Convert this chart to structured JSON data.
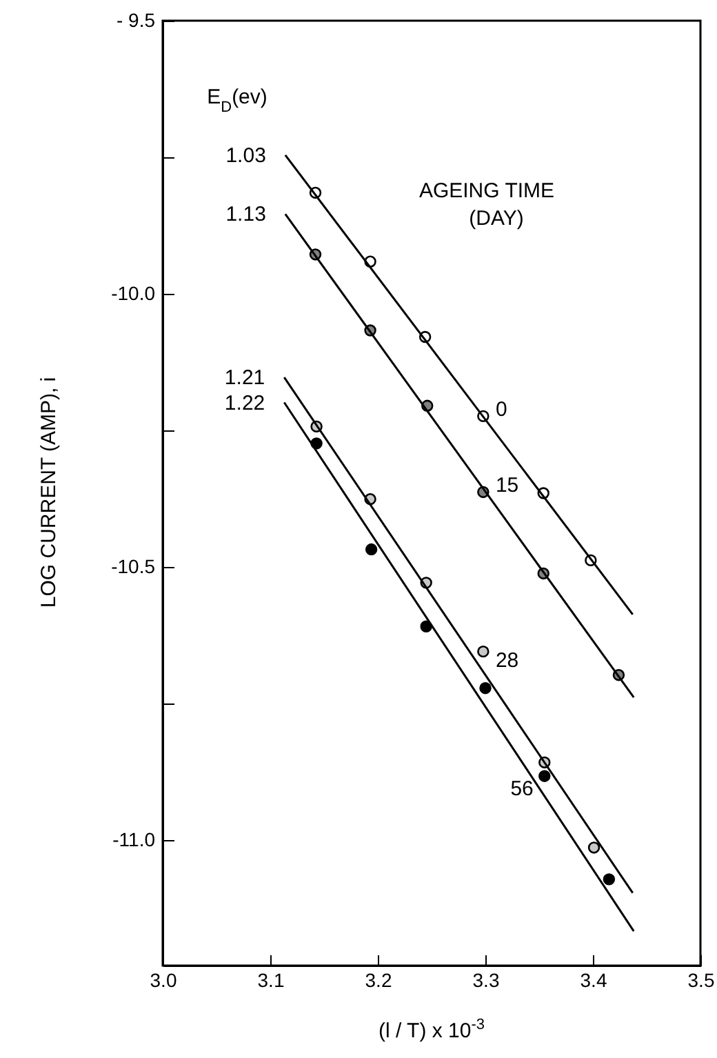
{
  "chart_data": {
    "type": "scatter",
    "xlabel": "(l / T) x 10$^{-3}$",
    "ylabel": "LOG CURRENT (AMP), i",
    "xlim": [
      3.0,
      3.5
    ],
    "xticks": [
      {
        "value": 3.0,
        "label": "3.0"
      },
      3.1,
      3.2,
      3.3,
      3.4,
      3.5
    ],
    "ylim": [
      -11.23,
      -9.5
    ],
    "yticks": [
      {
        "value": -9.5,
        "label": "- 9.5"
      },
      {
        "value": -9.75,
        "label": null
      },
      {
        "value": -10.0,
        "label": "-10.0"
      },
      {
        "value": -10.25,
        "label": null
      },
      {
        "value": -10.5,
        "label": "-10.5"
      },
      {
        "value": -10.75,
        "label": null
      },
      {
        "value": -11.0,
        "label": "-11.0"
      }
    ],
    "marker": "circle",
    "grid": false,
    "series": [
      {
        "name": "0",
        "color": "#ffffff",
        "x": [
          3.142,
          3.193,
          3.244,
          3.298,
          3.354,
          3.398
        ],
        "values": [
          -9.815,
          -9.941,
          -10.079,
          -10.224,
          -10.365,
          -10.488
        ]
      },
      {
        "name": "15",
        "color": "#808080",
        "x": [
          3.142,
          3.193,
          3.246,
          3.298,
          3.354,
          3.424
        ],
        "values": [
          -9.928,
          -10.067,
          -10.205,
          -10.363,
          -10.512,
          -10.698
        ]
      },
      {
        "name": "28",
        "color": "#c8c8c8",
        "x": [
          3.143,
          3.193,
          3.245,
          3.298,
          3.355,
          3.401
        ],
        "values": [
          -10.243,
          -10.376,
          -10.529,
          -10.655,
          -10.858,
          -11.014
        ]
      },
      {
        "name": "56",
        "color": "#000000",
        "x": [
          3.143,
          3.194,
          3.245,
          3.3,
          3.355,
          3.415
        ],
        "values": [
          -10.274,
          -10.468,
          -10.609,
          -10.722,
          -10.883,
          -11.072
        ]
      },
      {
        "type": "line",
        "name": "1.03",
        "marker": "none",
        "color": "#000000",
        "x": [
          3.114,
          3.437
        ],
        "values": [
          -9.746,
          -10.587
        ]
      },
      {
        "type": "line",
        "name": "1.13",
        "marker": "none",
        "color": "#000000",
        "x": [
          3.114,
          3.438
        ],
        "values": [
          -9.854,
          -10.739
        ]
      },
      {
        "type": "line",
        "name": "1.21",
        "marker": "none",
        "color": "#000000",
        "x": [
          3.113,
          3.437
        ],
        "values": [
          -10.153,
          -11.097
        ]
      },
      {
        "type": "line",
        "name": "1.22",
        "marker": "none",
        "color": "#000000",
        "x": [
          3.113,
          3.438
        ],
        "values": [
          -10.199,
          -11.167
        ]
      }
    ],
    "annotations": [
      "E$_{D}$(ev)",
      "AGEING TIME",
      "(DAY)"
    ]
  }
}
